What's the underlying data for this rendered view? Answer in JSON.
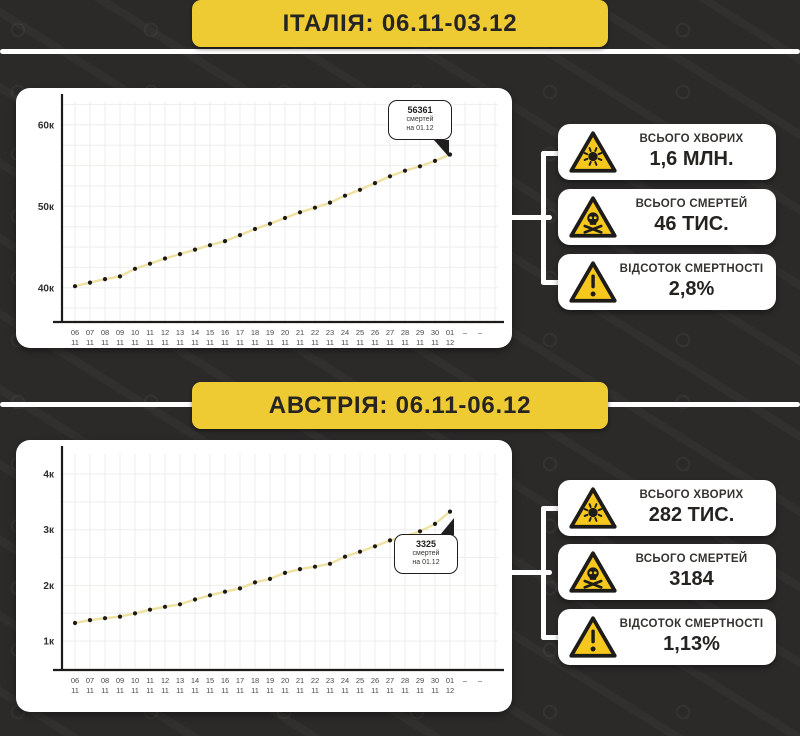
{
  "page": {
    "background": "#2b2a29",
    "accent_yellow": "#efcb33",
    "card_white": "#ffffff"
  },
  "sections": [
    {
      "banner": "ІТАЛІЯ: 06.11-03.12",
      "annotation": {
        "value": "56361",
        "unit": "смертей",
        "date": "на 01.12"
      },
      "stats": [
        {
          "icon": "virus-warning-icon",
          "label": "ВСЬОГО ХВОРИХ",
          "value": "1,6 МЛН."
        },
        {
          "icon": "skull-warning-icon",
          "label": "ВСЬОГО СМЕРТЕЙ",
          "value": "46 ТИС."
        },
        {
          "icon": "exclamation-warning-icon",
          "label": "ВІДСОТОК СМЕРТНОСТІ",
          "value": "2,8%"
        }
      ]
    },
    {
      "banner": "АВСТРІЯ: 06.11-06.12",
      "annotation": {
        "value": "3325",
        "unit": "смертей",
        "date": "на 01.12"
      },
      "stats": [
        {
          "icon": "virus-warning-icon",
          "label": "ВСЬОГО ХВОРИХ",
          "value": "282 ТИС."
        },
        {
          "icon": "skull-warning-icon",
          "label": "ВСЬОГО СМЕРТЕЙ",
          "value": "3184"
        },
        {
          "icon": "exclamation-warning-icon",
          "label": "ВІДСОТОК СМЕРТНОСТІ",
          "value": "1,13%"
        }
      ]
    }
  ],
  "chart_data": [
    {
      "type": "line",
      "title": "ІТАЛІЯ: 06.11-03.12",
      "ylabel": "смертей",
      "categories": [
        "06.11",
        "07.11",
        "08.11",
        "09.11",
        "10.11",
        "11.11",
        "12.11",
        "13.11",
        "14.11",
        "15.11",
        "16.11",
        "17.11",
        "18.11",
        "19.11",
        "20.11",
        "21.11",
        "22.11",
        "23.11",
        "24.11",
        "25.11",
        "26.11",
        "27.11",
        "28.11",
        "29.11",
        "30.11",
        "01.12"
      ],
      "values": [
        40192,
        40638,
        41063,
        41394,
        42330,
        42953,
        43589,
        44139,
        44683,
        45229,
        45733,
        46464,
        47217,
        47870,
        48569,
        49261,
        49823,
        50453,
        51306,
        52028,
        52850,
        53677,
        54363,
        54904,
        55576,
        56361
      ],
      "ylim": [
        35800,
        62800
      ],
      "yticks": [
        {
          "value": 40000,
          "label": "40к"
        },
        {
          "value": 50000,
          "label": "50к"
        },
        {
          "value": 60000,
          "label": "60к"
        }
      ],
      "grid_start": 37500,
      "grid_step": 2500,
      "grid": true,
      "legend": false,
      "trailing_dashes": 2,
      "line_color": "#eee1a2",
      "point_color": "#1b1a19",
      "annotation_point": {
        "x": "01.12",
        "y": 56361
      }
    },
    {
      "type": "line",
      "title": "АВСТРІЯ: 06.11-06.12",
      "ylabel": "смертей",
      "categories": [
        "06.11",
        "07.11",
        "08.11",
        "09.11",
        "10.11",
        "11.11",
        "12.11",
        "13.11",
        "14.11",
        "15.11",
        "16.11",
        "17.11",
        "18.11",
        "19.11",
        "20.11",
        "21.11",
        "22.11",
        "23.11",
        "24.11",
        "25.11",
        "26.11",
        "27.11",
        "28.11",
        "29.11",
        "30.11",
        "01.12"
      ],
      "values": [
        1325,
        1377,
        1411,
        1440,
        1497,
        1564,
        1616,
        1661,
        1746,
        1822,
        1887,
        1945,
        2054,
        2116,
        2224,
        2292,
        2336,
        2388,
        2515,
        2605,
        2702,
        2808,
        2886,
        2972,
        3105,
        3325
      ],
      "ylim": [
        480,
        4360
      ],
      "yticks": [
        {
          "value": 1000,
          "label": "1к"
        },
        {
          "value": 2000,
          "label": "2к"
        },
        {
          "value": 3000,
          "label": "3к"
        },
        {
          "value": 4000,
          "label": "4к"
        }
      ],
      "grid_start": 500,
      "grid_step": 500,
      "grid": true,
      "legend": false,
      "trailing_dashes": 2,
      "line_color": "#eee1a2",
      "point_color": "#1b1a19",
      "annotation_point": {
        "x": "01.12",
        "y": 3325
      }
    }
  ]
}
